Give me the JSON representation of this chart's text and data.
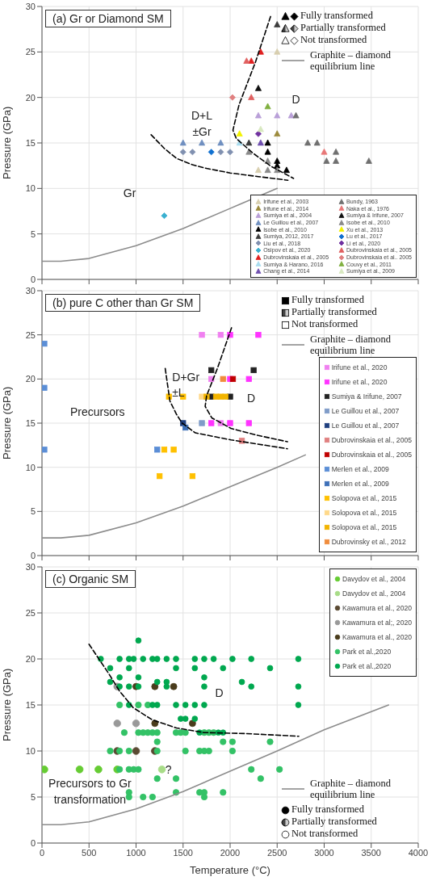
{
  "chart_data": [
    {
      "type": "scatter",
      "title": "(a) Gr or Diamond SM",
      "ylabel": "Pressure (GPa)",
      "xlim": [
        0,
        4000
      ],
      "ylim": [
        0,
        30
      ],
      "xticks": [
        0,
        500,
        1000,
        1500,
        2000,
        2500,
        3000,
        3500,
        4000
      ],
      "yticks": [
        0,
        5,
        10,
        15,
        20,
        25,
        30
      ],
      "grid": true,
      "legend": "bottom right",
      "tick_labels": "y",
      "annotations": [
        "Fully transformed",
        "Partially transformed",
        "Not transformed",
        "D+L",
        "±Gr",
        "D",
        "Gr"
      ],
      "series": [
        {
          "name": "Irifune et al., 2003",
          "color": "#d8cfb0",
          "marker": "triangle",
          "x": [
            2500,
            2300
          ],
          "values": [
            25,
            12
          ]
        },
        {
          "name": "Irifune et al., 2014",
          "color": "#9c8a3c",
          "marker": "triangle",
          "x": [
            2500
          ],
          "values": [
            16
          ]
        },
        {
          "name": "Sumiya et al., 2004",
          "color": "#b9a0d8",
          "marker": "triangle",
          "x": [
            2300,
            2500,
            2650
          ],
          "values": [
            18,
            18,
            18
          ]
        },
        {
          "name": "Le Guillou et al., 2007",
          "color": "#6f8fc0",
          "marker": "triangle",
          "x": [
            1500,
            1700,
            1900
          ],
          "values": [
            15,
            15,
            15
          ]
        },
        {
          "name": "Isobe et al., 2010",
          "color": "#000000",
          "marker": "triangle",
          "x": [
            2400,
            2400,
            2500,
            2500,
            2600
          ],
          "values": [
            15,
            14,
            13,
            12.5,
            12
          ]
        },
        {
          "name": "Sumiya, 2012, 2017",
          "color": "#3c3c3c",
          "marker": "triangle",
          "x": [
            2500,
            2200
          ],
          "values": [
            28,
            15
          ]
        },
        {
          "name": "Liu et al., 2018",
          "color": "#8090b0",
          "marker": "diamond",
          "x": [
            1500,
            1600,
            1900,
            2000
          ],
          "values": [
            14,
            14,
            14,
            14
          ]
        },
        {
          "name": "Osipov et al., 2020",
          "color": "#3ab0d0",
          "marker": "diamond",
          "x": [
            1300
          ],
          "values": [
            7
          ]
        },
        {
          "name": "Dubrovinskaia et al., 2005",
          "color": "#e02020",
          "marker": "triangle",
          "x": [
            2325,
            2225
          ],
          "values": [
            25,
            24
          ]
        },
        {
          "name": "Sumiya & Harano, 2016",
          "color": "#a8dcef",
          "marker": "triangle",
          "x": [
            2100
          ],
          "values": [
            15
          ]
        },
        {
          "name": "Chang et al., 2014",
          "color": "#7050b0",
          "marker": "triangle",
          "x": [
            2325
          ],
          "values": [
            15
          ]
        },
        {
          "name": "Bundy, 1963",
          "color": "#707070",
          "marker": "triangle",
          "x": [
            2825,
            2925,
            3025,
            3125,
            3125,
            3475,
            2700
          ],
          "values": [
            15,
            15,
            13,
            14,
            13,
            13,
            18
          ]
        },
        {
          "name": "Naka et al., 1976",
          "color": "#e87878",
          "marker": "triangle",
          "x": [
            3000
          ],
          "values": [
            14
          ]
        },
        {
          "name": "Sumiya & Irifune, 2007",
          "color": "#101010",
          "marker": "triangle",
          "x": [
            2300
          ],
          "values": [
            21
          ]
        },
        {
          "name": "Isobe et al., 2010",
          "color": "#8a8a8a",
          "marker": "triangle",
          "x": [
            2200,
            2400,
            2400,
            2500
          ],
          "values": [
            14,
            13,
            12,
            12
          ]
        },
        {
          "name": "Xu et al., 2013",
          "color": "#f2f200",
          "marker": "triangle",
          "x": [
            2100
          ],
          "values": [
            16
          ]
        },
        {
          "name": "Lu et al., 2017",
          "color": "#1070d0",
          "marker": "diamond",
          "x": [
            1800
          ],
          "values": [
            14
          ]
        },
        {
          "name": "Li et al., 2020",
          "color": "#7030a0",
          "marker": "diamond",
          "x": [
            2300
          ],
          "values": [
            16
          ]
        },
        {
          "name": "Dubrovinskaia et al., 2005",
          "color": "#e06060",
          "marker": "triangle",
          "x": [
            2175,
            2225
          ],
          "values": [
            24,
            20
          ]
        },
        {
          "name": "Dubrovinskaia et al.. 2005",
          "color": "#e08080",
          "marker": "diamond",
          "x": [
            2025
          ],
          "values": [
            20
          ]
        },
        {
          "name": "Couvy et al., 2011",
          "color": "#80b040",
          "marker": "triangle",
          "x": [
            2400
          ],
          "values": [
            19
          ]
        },
        {
          "name": "Sumiya et al., 2009",
          "color": "#d8e8c0",
          "marker": "triangle",
          "x": [
            2325
          ],
          "values": [
            16.5
          ]
        },
        {
          "type": "line",
          "color": "#000000",
          "line_style": "dashed",
          "x": [
            1160,
            1300,
            1430,
            1600,
            1750,
            2000,
            2300,
            2615
          ],
          "values": [
            15.9,
            14.4,
            13.3,
            12.6,
            12.2,
            11.7,
            11.3,
            10.9
          ]
        },
        {
          "type": "line",
          "color": "#000000",
          "line_style": "dashed",
          "x": [
            2430,
            2270,
            2095,
            2030,
            2065,
            2240,
            2440,
            2675
          ],
          "values": [
            28.9,
            23.9,
            19.2,
            16.4,
            15.5,
            13.9,
            12.4,
            11.1
          ]
        },
        {
          "type": "line",
          "name": "Graphite – diamond equilibrium line",
          "color": "#8c8c8c",
          "line_style": "solid",
          "x": [
            0,
            200,
            500,
            1000,
            1500,
            2000,
            2500
          ],
          "values": [
            2,
            2,
            2.3,
            3.7,
            5.6,
            7.8,
            10
          ]
        }
      ]
    },
    {
      "type": "scatter",
      "title": "(b) pure C other than Gr SM",
      "ylabel": "Pressure (GPa)",
      "xlim": [
        0,
        4000
      ],
      "ylim": [
        0,
        30
      ],
      "xticks": [
        0,
        500,
        1000,
        1500,
        2000,
        2500,
        3000,
        3500,
        4000
      ],
      "yticks": [
        0,
        5,
        10,
        15,
        20,
        25,
        30
      ],
      "grid": true,
      "legend": "right",
      "tick_labels": "y",
      "annotations": [
        "Fully transformed",
        "Partially transformed",
        "Not transformed",
        "D+Gr",
        "±L",
        "D",
        "Precursors"
      ],
      "series": [
        {
          "name": "Irifune et al., 2020",
          "color": "#f080f0",
          "marker": "square",
          "x": [
            1700,
            1900,
            1900,
            1800
          ],
          "values": [
            25,
            25,
            15,
            20
          ]
        },
        {
          "name": "Irifune et al., 2020",
          "color": "#ff33ff",
          "marker": "square",
          "x": [
            2000,
            2300,
            2000,
            2200,
            1800,
            2000,
            2200
          ],
          "values": [
            25,
            25,
            20,
            20,
            15,
            15,
            15
          ]
        },
        {
          "name": "Sumiya & Irifune, 2007",
          "color": "#222222",
          "marker": "square",
          "x": [
            1800,
            2250,
            1800,
            2000
          ],
          "values": [
            21,
            21,
            18,
            18
          ]
        },
        {
          "name": "Le Guillou et al., 2007",
          "color": "#7f9cc8",
          "marker": "square",
          "x": [
            1700
          ],
          "values": [
            15
          ]
        },
        {
          "name": "Le Guillou et al., 2007",
          "color": "#1f3f7f",
          "marker": "square",
          "x": [
            1500
          ],
          "values": [
            15
          ]
        },
        {
          "name": "Dubrovinskaia et al., 2005",
          "color": "#e08080",
          "marker": "square",
          "x": [
            2125
          ],
          "values": [
            13
          ]
        },
        {
          "name": "Dubrovinskaia et al., 2005",
          "color": "#c00000",
          "marker": "square",
          "x": [
            2030
          ],
          "values": [
            20
          ]
        },
        {
          "name": "Merlen et al., 2009",
          "color": "#5b8ed6",
          "marker": "square",
          "x": [
            25,
            25,
            25,
            1225
          ],
          "values": [
            24,
            19,
            12,
            12
          ]
        },
        {
          "name": "Merlen et al., 2009",
          "color": "#3e70b8",
          "marker": "square",
          "x": [
            1525
          ],
          "values": [
            14.5
          ]
        },
        {
          "name": "Solopova et al., 2015",
          "color": "#ffc000",
          "marker": "square",
          "x": [
            1350,
            1500,
            1300,
            1400,
            1250,
            1600
          ],
          "values": [
            18,
            18,
            12,
            12,
            9,
            9
          ]
        },
        {
          "name": "Solopova et al., 2015",
          "color": "#ffd98a",
          "marker": "square",
          "x": [
            1700
          ],
          "values": [
            18
          ]
        },
        {
          "name": "Solopova et al., 2015",
          "color": "#f2b400",
          "marker": "square",
          "x": [
            1750,
            1850,
            1900,
            1950
          ],
          "values": [
            18,
            18,
            18,
            18
          ]
        },
        {
          "name": "Dubrovinsky et al., 2012",
          "color": "#f08c3c",
          "marker": "square",
          "x": [
            1925
          ],
          "values": [
            20
          ]
        },
        {
          "type": "line",
          "color": "#000000",
          "line_style": "dashed",
          "x": [
            1310,
            1360,
            1430,
            1490,
            1630,
            2010,
            2610
          ],
          "values": [
            21.2,
            17.5,
            16,
            15,
            13.9,
            13.1,
            12.1
          ]
        },
        {
          "type": "line",
          "color": "#000000",
          "line_style": "dashed",
          "x": [
            2015,
            1865,
            1750,
            1735,
            1805,
            2010,
            2300,
            2610
          ],
          "values": [
            25.8,
            21.2,
            18.1,
            16.9,
            15.6,
            14.4,
            13.6,
            12.9
          ]
        },
        {
          "type": "line",
          "name": "Graphite – diamond equilibrium line",
          "color": "#8c8c8c",
          "line_style": "solid",
          "x": [
            0,
            200,
            500,
            1000,
            1500,
            2000,
            2500,
            2800
          ],
          "values": [
            2,
            2,
            2.3,
            3.7,
            5.6,
            7.8,
            10,
            11.4
          ]
        }
      ]
    },
    {
      "type": "scatter",
      "title": "(c) Organic SM",
      "xlabel": "Temperature (°C)",
      "ylabel": "Pressure (GPa)",
      "xlim": [
        0,
        4000
      ],
      "ylim": [
        0,
        30
      ],
      "xticks": [
        0,
        500,
        1000,
        1500,
        2000,
        2500,
        3000,
        3500,
        4000
      ],
      "yticks": [
        0,
        5,
        10,
        15,
        20,
        25,
        30
      ],
      "grid": true,
      "legend": "top right",
      "annotations": [
        "Fully transformed",
        "Partially transformed",
        "Not transformed",
        "D",
        "?",
        "Precursors to Gr",
        "transformation"
      ],
      "series": [
        {
          "name": "Davydov et al., 2004",
          "color": "#66cc33",
          "marker": "circle",
          "x": [
            25,
            400,
            600,
            800
          ],
          "values": [
            8,
            8,
            8,
            8
          ]
        },
        {
          "name": "Davydov et al., 2004",
          "color": "#a8dc88",
          "marker": "circle",
          "x": [
            1275
          ],
          "values": [
            8
          ]
        },
        {
          "name": "Kawamura et al., 2020",
          "color": "#5a4a32",
          "marker": "circle",
          "x": [
            800,
            1000,
            1200
          ],
          "values": [
            10,
            10,
            10
          ]
        },
        {
          "name": "Kawamura et al;, 2020",
          "color": "#999999",
          "marker": "circle",
          "x": [
            800,
            800,
            1000
          ],
          "values": [
            17,
            13,
            13
          ]
        },
        {
          "name": "Kawamura et al., 2020",
          "color": "#4a3c1c",
          "marker": "circle",
          "x": [
            1000,
            1200,
            1400,
            1200,
            1600
          ],
          "values": [
            17,
            17,
            17,
            13,
            13
          ]
        },
        {
          "name": "Park et al.,2020",
          "color": "#33c266",
          "marker": "circle",
          "x": [
            825,
            1025,
            1125,
            875,
            1025,
            1075,
            1125,
            1175,
            1225,
            1425,
            1475,
            1525,
            1725,
            1775,
            1825,
            1225,
            1925,
            2025,
            2425,
            725,
            825,
            925,
            1225,
            1525,
            1675,
            1725,
            1775,
            2025,
            825,
            925,
            975,
            1025,
            2225,
            2525,
            1225,
            1425,
            2325,
            925,
            1425,
            1675,
            1725,
            1925,
            925,
            1075,
            1175,
            1725
          ],
          "values": [
            15,
            15,
            15,
            12,
            12,
            12,
            12,
            12,
            12,
            12,
            12,
            12,
            12,
            12,
            12,
            11,
            11,
            11,
            11,
            10,
            10,
            10,
            10,
            10,
            10,
            10,
            10,
            10,
            8,
            8,
            8,
            8,
            8,
            8,
            7,
            7,
            7,
            5.5,
            5.5,
            5.5,
            5.5,
            5.5,
            5,
            5,
            5,
            5
          ]
        },
        {
          "name": "Park et al.,2020",
          "color": "#00a84f",
          "marker": "circle",
          "x": [
            1025,
            625,
            825,
            925,
            975,
            1075,
            1175,
            1225,
            1325,
            1425,
            1625,
            1725,
            1825,
            2025,
            2225,
            2725,
            725,
            925,
            1425,
            1625,
            1925,
            2425,
            825,
            1025,
            1725,
            725,
            1225,
            1325,
            2125,
            825,
            925,
            1025,
            1325,
            1725,
            2225,
            2725,
            925,
            1175,
            1225,
            1425,
            1525,
            1625,
            1725,
            2725,
            1475,
            1525,
            1625,
            1675,
            1875,
            1925
          ],
          "values": [
            22,
            20,
            20,
            20,
            20,
            20,
            20,
            20,
            20,
            20,
            20,
            20,
            20,
            20,
            20,
            20,
            19,
            19,
            19,
            19,
            19,
            19,
            18,
            18,
            18,
            17.5,
            17.5,
            17.5,
            17.5,
            17,
            17,
            17,
            17,
            17,
            17,
            17,
            15,
            15,
            15,
            15,
            15,
            15,
            15,
            15,
            13.5,
            13.5,
            13.5,
            12,
            12,
            12
          ]
        },
        {
          "type": "line",
          "color": "#000000",
          "line_style": "dashed",
          "x": [
            500,
            710,
            825,
            970,
            1170,
            1430,
            1720,
            2150,
            2730
          ],
          "values": [
            21.6,
            18.4,
            16.5,
            14.7,
            13.4,
            12.5,
            12,
            11.9,
            11.6
          ]
        },
        {
          "type": "line",
          "name": "Graphite – diamond equilibrium line",
          "color": "#8c8c8c",
          "line_style": "solid",
          "x": [
            0,
            200,
            500,
            1000,
            1500,
            2000,
            2500,
            3000,
            3685
          ],
          "values": [
            2,
            2,
            2.3,
            3.7,
            5.6,
            7.8,
            10,
            12.3,
            15
          ]
        }
      ]
    }
  ]
}
